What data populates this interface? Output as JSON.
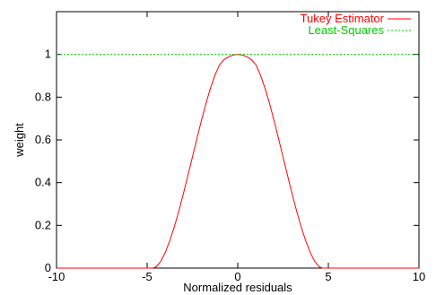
{
  "chart_data": {
    "type": "line",
    "title": "",
    "xlabel": "Normalized residuals",
    "ylabel": "weight",
    "xlim": [
      -10,
      10
    ],
    "ylim": [
      0,
      1.2
    ],
    "grid": false,
    "legend_position": "top-right",
    "x_ticks": [
      {
        "value": -10,
        "label": "-10"
      },
      {
        "value": -5,
        "label": "-5"
      },
      {
        "value": 0,
        "label": "0"
      },
      {
        "value": 5,
        "label": "5"
      },
      {
        "value": 10,
        "label": "10"
      }
    ],
    "y_ticks": [
      {
        "value": 0,
        "label": "0"
      },
      {
        "value": 0.2,
        "label": "0.2"
      },
      {
        "value": 0.4,
        "label": "0.4"
      },
      {
        "value": 0.6,
        "label": "0.6"
      },
      {
        "value": 0.8,
        "label": "0.8"
      },
      {
        "value": 1,
        "label": "1"
      }
    ],
    "series": [
      {
        "name": "Tukey Estimator",
        "color": "#ff0000",
        "style": "solid",
        "x": [
          -10,
          -5,
          -4.685,
          -4.5,
          -4.25,
          -4,
          -3.75,
          -3.5,
          -3.25,
          -3,
          -2.75,
          -2.5,
          -2.25,
          -2,
          -1.75,
          -1.5,
          -1.25,
          -1,
          -0.75,
          -0.5,
          -0.25,
          0,
          0.25,
          0.5,
          0.75,
          1,
          1.25,
          1.5,
          1.75,
          2,
          2.25,
          2.5,
          2.75,
          3,
          3.25,
          3.5,
          3.75,
          4,
          4.25,
          4.5,
          4.685,
          5,
          10
        ],
        "y": [
          0,
          0,
          0,
          0.006,
          0.031,
          0.073,
          0.128,
          0.193,
          0.267,
          0.348,
          0.433,
          0.52,
          0.607,
          0.692,
          0.772,
          0.843,
          0.904,
          0.952,
          0.976,
          0.989,
          0.997,
          1,
          0.997,
          0.989,
          0.976,
          0.952,
          0.904,
          0.843,
          0.772,
          0.692,
          0.607,
          0.52,
          0.433,
          0.348,
          0.267,
          0.193,
          0.128,
          0.073,
          0.031,
          0.006,
          0,
          0,
          0
        ]
      },
      {
        "name": "Least-Squares",
        "color": "#00cc00",
        "style": "dashed",
        "x": [
          -10,
          10
        ],
        "y": [
          1,
          1
        ]
      }
    ]
  }
}
